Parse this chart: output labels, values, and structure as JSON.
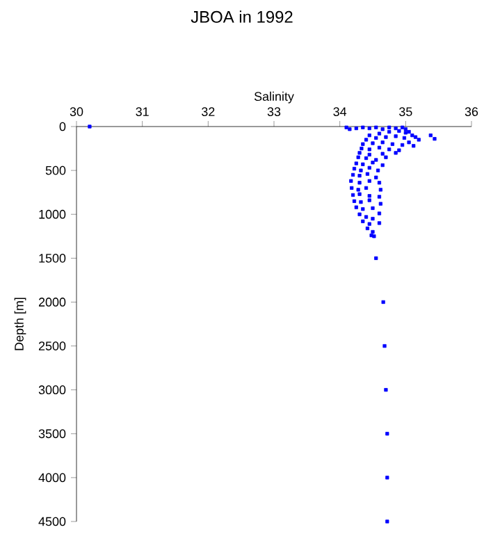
{
  "chart_data": {
    "type": "scatter",
    "title": "JBOA in 1992",
    "xlabel": "Salinity",
    "ylabel": "Depth [m]",
    "color": "#0000ff",
    "marker": "square",
    "grid": false,
    "xlim": [
      30,
      36
    ],
    "ylim": [
      4500,
      0
    ],
    "xticks": [
      30,
      31,
      32,
      33,
      34,
      35,
      36
    ],
    "yticks": [
      0,
      500,
      1000,
      1500,
      2000,
      2500,
      3000,
      3500,
      4000,
      4500
    ],
    "x": [
      34.1,
      34.15,
      34.25,
      34.35,
      34.45,
      34.55,
      34.65,
      34.75,
      34.85,
      34.95,
      35.0,
      35.05,
      35.1,
      35.15,
      35.2,
      35.05,
      35.12,
      35.38,
      35.44,
      34.45,
      34.6,
      34.75,
      34.9,
      35.0,
      34.4,
      34.55,
      34.7,
      34.85,
      34.98,
      34.35,
      34.5,
      34.65,
      34.8,
      34.95,
      34.33,
      34.45,
      34.6,
      34.75,
      34.9,
      34.3,
      34.45,
      34.65,
      34.85,
      34.28,
      34.4,
      34.55,
      34.7,
      34.25,
      34.35,
      34.5,
      34.65,
      34.22,
      34.32,
      34.45,
      34.58,
      34.2,
      34.3,
      34.42,
      34.55,
      34.17,
      34.3,
      34.45,
      34.6,
      34.18,
      34.28,
      34.4,
      34.62,
      34.2,
      34.3,
      34.45,
      34.6,
      34.22,
      34.32,
      34.45,
      34.62,
      34.25,
      34.35,
      34.5,
      34.6,
      34.3,
      34.4,
      34.5,
      34.35,
      34.45,
      34.6,
      34.42,
      34.5,
      34.48,
      34.52,
      34.55,
      34.66,
      34.68,
      34.7,
      34.72,
      34.72,
      34.72,
      30.2
    ],
    "values": [
      10,
      30,
      20,
      10,
      20,
      10,
      30,
      10,
      20,
      10,
      30,
      60,
      100,
      120,
      150,
      180,
      220,
      100,
      140,
      100,
      80,
      60,
      50,
      70,
      150,
      130,
      120,
      110,
      130,
      200,
      190,
      180,
      200,
      210,
      250,
      260,
      240,
      260,
      270,
      300,
      320,
      310,
      300,
      350,
      360,
      380,
      350,
      420,
      430,
      410,
      440,
      480,
      500,
      470,
      500,
      550,
      560,
      540,
      580,
      620,
      640,
      620,
      640,
      700,
      720,
      700,
      720,
      780,
      770,
      790,
      800,
      850,
      860,
      840,
      880,
      920,
      940,
      930,
      990,
      1000,
      1030,
      1050,
      1080,
      1110,
      1100,
      1160,
      1200,
      1240,
      1250,
      1500,
      2000,
      2500,
      3000,
      3500,
      4000,
      4500,
      0
    ]
  }
}
